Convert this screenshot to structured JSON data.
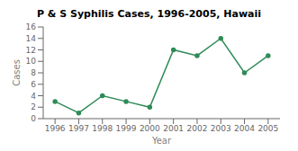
{
  "chart_data": {
    "type": "line",
    "title": "P & S Syphilis Cases, 1996-2005, Hawaii",
    "xlabel": "Year",
    "ylabel": "Cases",
    "x": [
      1996,
      1997,
      1998,
      1999,
      2000,
      2001,
      2002,
      2003,
      2004,
      2005
    ],
    "values": [
      3,
      1,
      4,
      3,
      2,
      12,
      11,
      14,
      8,
      11
    ],
    "color": "#2e8b57",
    "marker": "circle",
    "xlim": [
      1995.5,
      2005.5
    ],
    "xticks": [
      1996,
      1997,
      1998,
      1999,
      2000,
      2001,
      2002,
      2003,
      2004,
      2005
    ],
    "ylim": [
      0,
      16
    ],
    "yticks": [
      0,
      2,
      4,
      6,
      8,
      10,
      12,
      14,
      16
    ],
    "grid": false
  }
}
